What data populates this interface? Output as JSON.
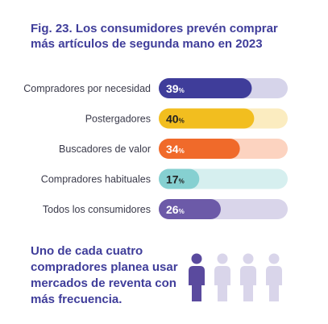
{
  "title": "Fig. 23. Los consumidores prevén comprar más artículos de segunda mano en 2023",
  "chart_data": {
    "type": "bar",
    "orientation": "horizontal",
    "categories": [
      "Compradores por necesidad",
      "Postergadores",
      "Buscadores de valor",
      "Compradores habituales",
      "Todos los consumidores"
    ],
    "values": [
      39,
      40,
      34,
      17,
      26
    ],
    "value_suffix": "%",
    "xlim": [
      0,
      100
    ],
    "colors": [
      "#3f3d9a",
      "#f2be1f",
      "#f06a2a",
      "#86d0d1",
      "#6c5aa8"
    ],
    "track_colors": [
      "#d6d4ea",
      "#fbecc0",
      "#fcd3c0",
      "#d6efef",
      "#d9d5ea"
    ],
    "label_text_colors": [
      "#ffffff",
      "#222222",
      "#ffffff",
      "#222222",
      "#ffffff"
    ]
  },
  "footer": {
    "text": "Uno de cada cuatro compradores planea usar mercados de reventa con más frecuencia.",
    "people_total": 4,
    "people_highlighted": 1,
    "highlight_color": "#5a4a9e",
    "muted_color": "#d9d5ea"
  }
}
